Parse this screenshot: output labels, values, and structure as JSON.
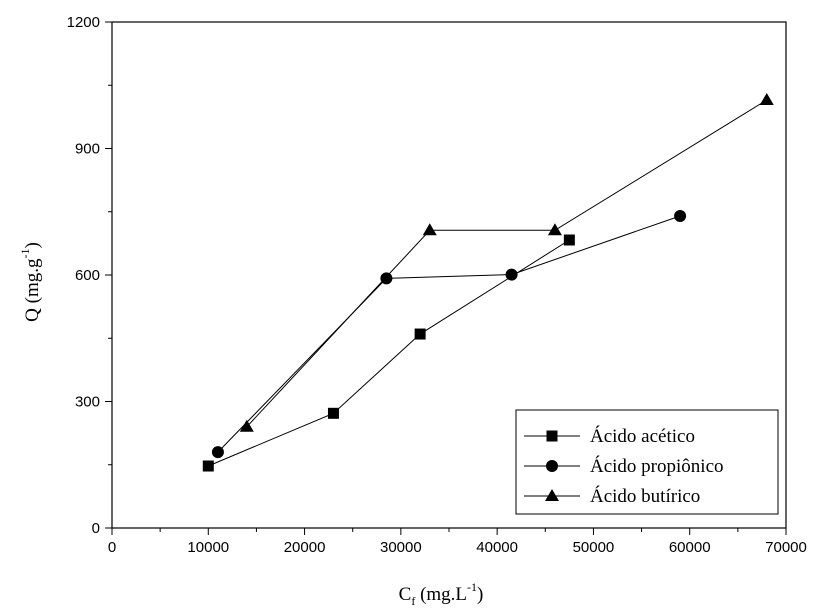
{
  "chart_data": {
    "type": "line",
    "title": "",
    "xlabel": {
      "main": "C",
      "subscript": "f",
      "unit": " (mg.L",
      "superscript": "-1",
      "close": ")"
    },
    "ylabel": {
      "main": "Q (mg.g",
      "superscript": "-1",
      "close": ")"
    },
    "xlim": [
      0,
      70000
    ],
    "ylim": [
      0,
      1200
    ],
    "xticks": [
      0,
      10000,
      20000,
      30000,
      40000,
      50000,
      60000,
      70000
    ],
    "yticks": [
      0,
      300,
      600,
      900,
      1200
    ],
    "grid": false,
    "legend_position": "bottom-right",
    "series": [
      {
        "name": "Ácido acético",
        "marker": "square",
        "x": [
          10000,
          23000,
          32000,
          47500
        ],
        "y": [
          147,
          272,
          460,
          683
        ]
      },
      {
        "name": "Ácido propiônico",
        "marker": "circle",
        "x": [
          11000,
          28500,
          41500,
          59000
        ],
        "y": [
          180,
          592,
          601,
          740
        ]
      },
      {
        "name": "Ácido butírico",
        "marker": "triangle",
        "x": [
          14000,
          33000,
          46000,
          68000
        ],
        "y": [
          240,
          706,
          706,
          1015
        ]
      }
    ]
  }
}
